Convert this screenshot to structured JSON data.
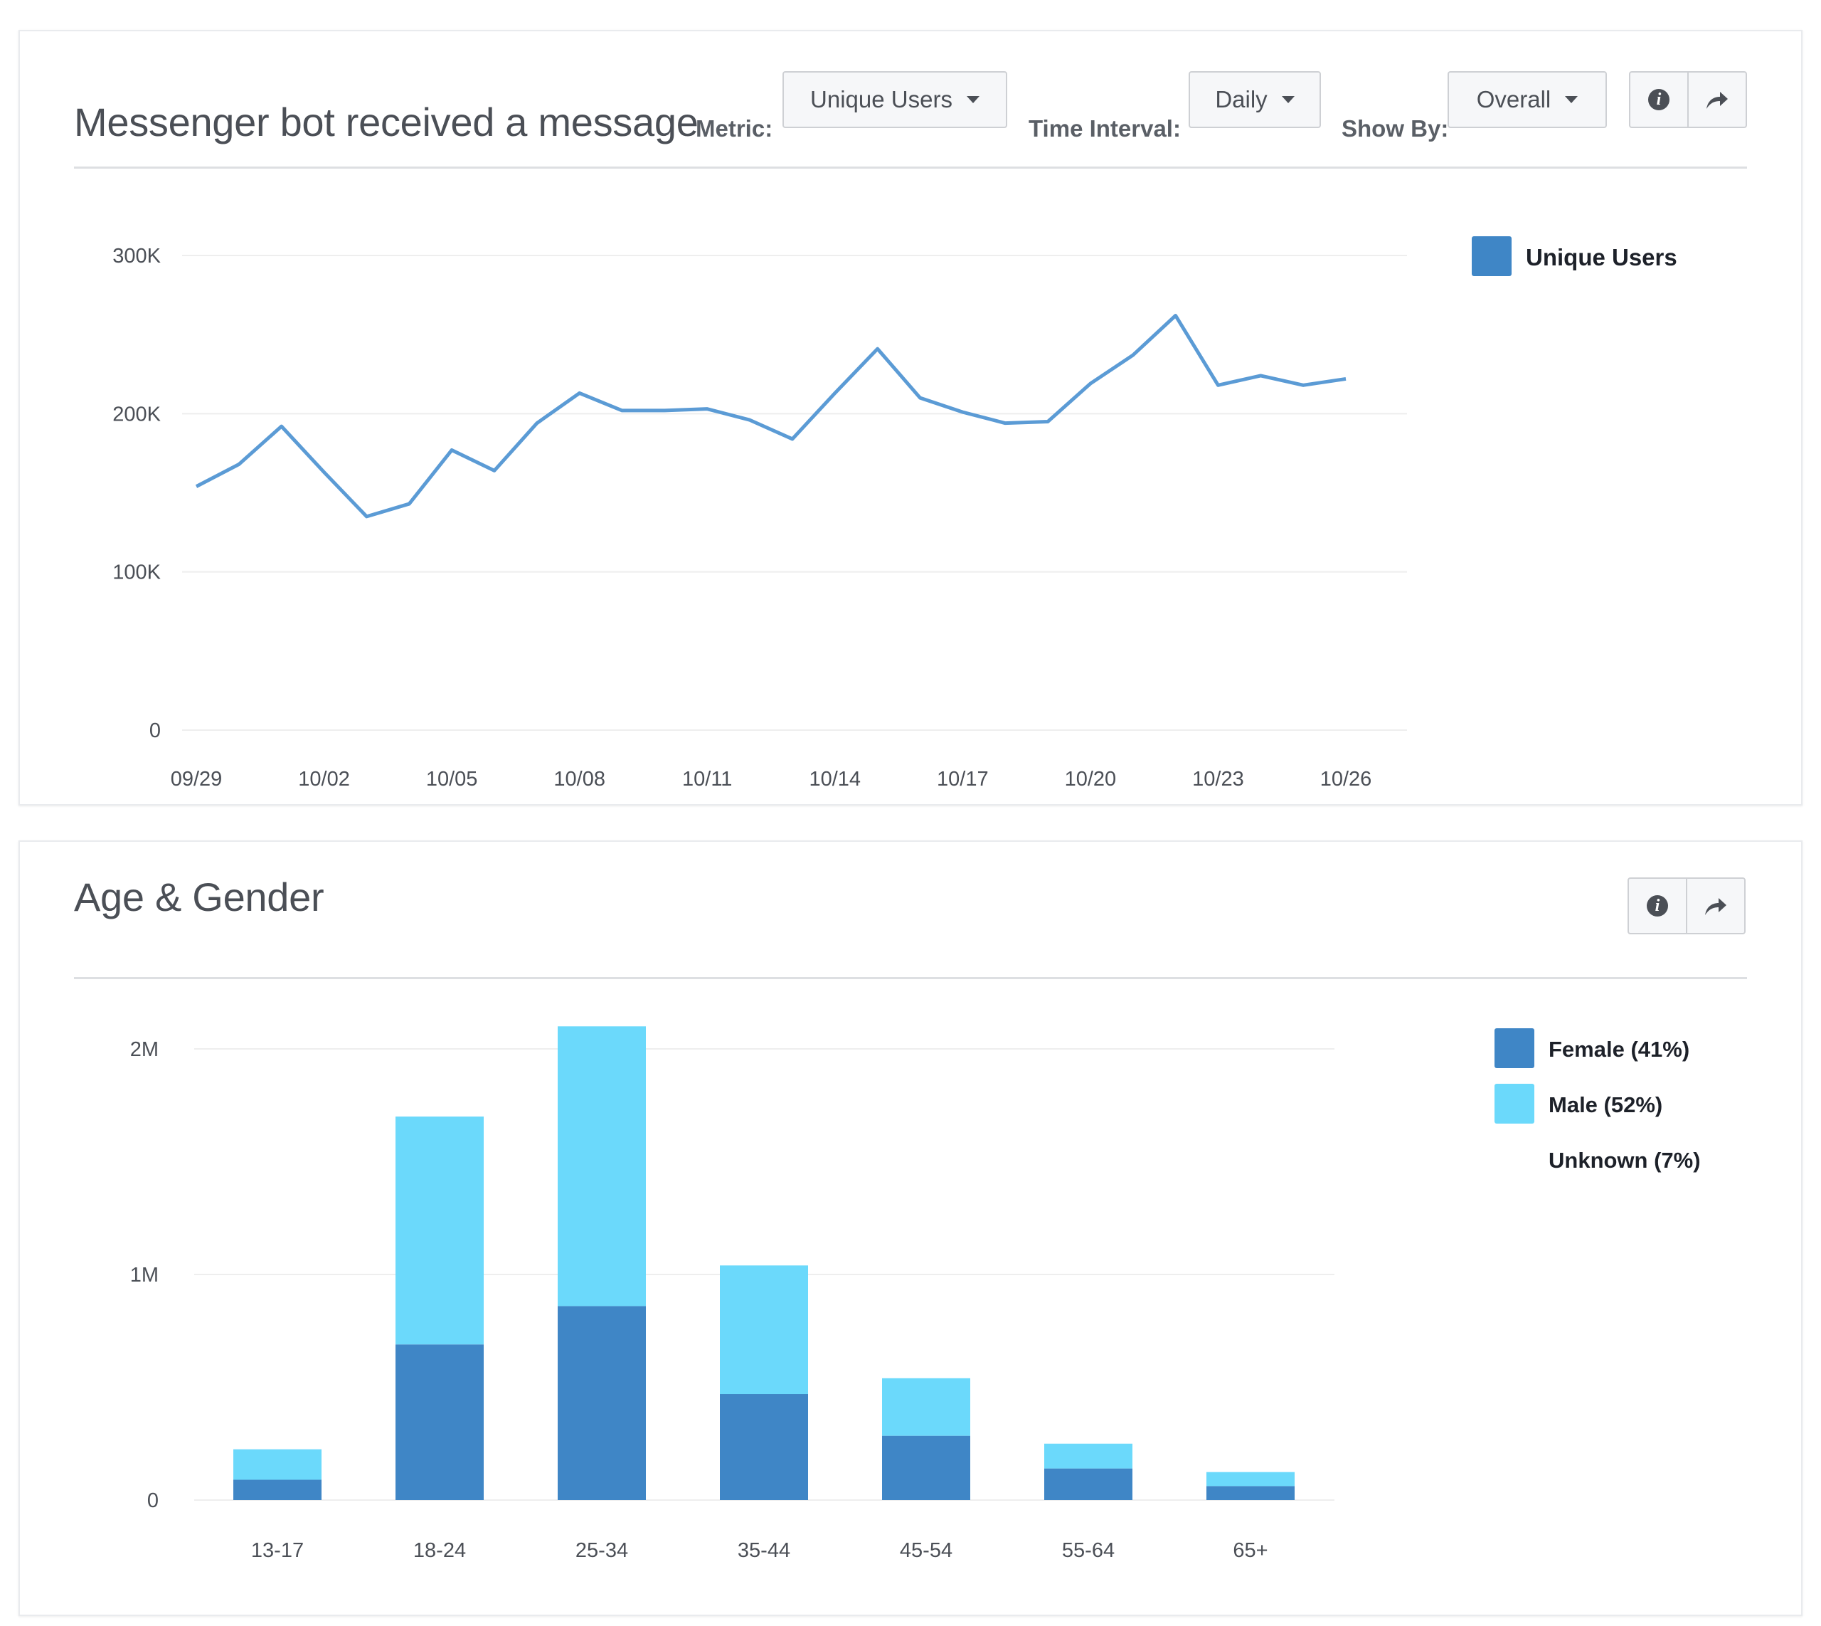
{
  "line_panel": {
    "title": "Messenger bot received a message",
    "metric_label": "Metric:",
    "metric_value": "Unique Users",
    "interval_label": "Time Interval:",
    "interval_value": "Daily",
    "showby_label": "Show By:",
    "showby_value": "Overall"
  },
  "bar_panel": {
    "title": "Age & Gender"
  },
  "colors": {
    "line": "#5b9bd5",
    "legend_unique": "#3f86c6",
    "female": "#3f86c6",
    "male": "#6bd9fb",
    "grid": "#eeeeee",
    "tick_text": "#4b4f56"
  },
  "chart_data": [
    {
      "type": "line",
      "title": "",
      "xlabel": "",
      "ylabel": "",
      "x": [
        "09/29",
        "09/30",
        "10/01",
        "10/02",
        "10/03",
        "10/04",
        "10/05",
        "10/06",
        "10/07",
        "10/08",
        "10/09",
        "10/10",
        "10/11",
        "10/12",
        "10/13",
        "10/14",
        "10/15",
        "10/16",
        "10/17",
        "10/18",
        "10/19",
        "10/20",
        "10/21",
        "10/22",
        "10/23",
        "10/24",
        "10/25",
        "10/26"
      ],
      "x_ticks": [
        "09/29",
        "10/02",
        "10/05",
        "10/08",
        "10/11",
        "10/14",
        "10/17",
        "10/20",
        "10/23",
        "10/26"
      ],
      "y_ticks": [
        "0",
        "100K",
        "200K",
        "300K"
      ],
      "ylim": [
        0,
        300000
      ],
      "series": [
        {
          "name": "Unique Users",
          "values": [
            154000,
            168000,
            192000,
            163000,
            135000,
            143000,
            177000,
            164000,
            194000,
            213000,
            202000,
            202000,
            203000,
            196000,
            184000,
            213000,
            241000,
            210000,
            201000,
            194000,
            195000,
            219000,
            237000,
            262000,
            218000,
            224000,
            218000,
            222000
          ]
        }
      ],
      "legend": [
        "Unique Users"
      ],
      "legend_position": "top-right",
      "grid": true
    },
    {
      "type": "bar",
      "stacked": true,
      "title": "",
      "xlabel": "",
      "ylabel": "",
      "categories": [
        "13-17",
        "18-24",
        "25-34",
        "35-44",
        "45-54",
        "55-64",
        "65+"
      ],
      "y_ticks": [
        "0",
        "1M",
        "2M"
      ],
      "ylim": [
        0,
        2000000
      ],
      "series": [
        {
          "name": "Female (41%)",
          "values": [
            90000,
            690000,
            860000,
            470000,
            285000,
            140000,
            62000
          ]
        },
        {
          "name": "Male (52%)",
          "values": [
            135000,
            1010000,
            1240000,
            570000,
            255000,
            110000,
            62000
          ]
        }
      ],
      "legend": [
        "Female (41%)",
        "Male (52%)",
        "Unknown (7%)"
      ],
      "legend_position": "top-right",
      "grid": true
    }
  ]
}
